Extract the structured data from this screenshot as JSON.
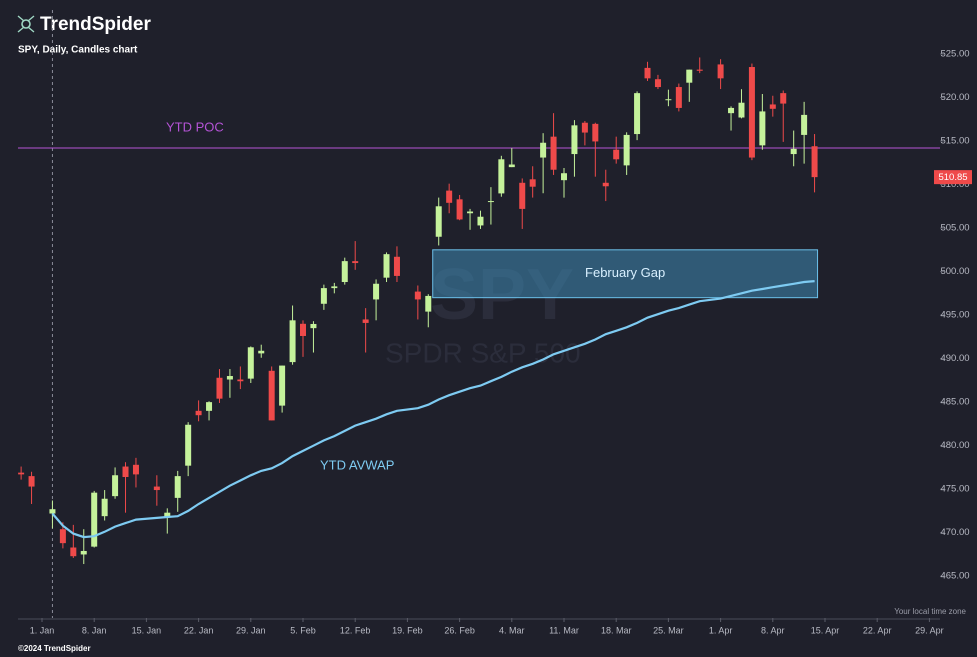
{
  "brand": "TrendSpider",
  "copyright": "©2024 TrendSpider",
  "timezone_note": "Your local time zone",
  "watermark": {
    "symbol": "SPY",
    "name": "SPDR S&P 500"
  },
  "chart_data": {
    "type": "candlestick",
    "title": "SPY, Daily, Candles chart",
    "up_color": "#c5f29b",
    "down_color": "#ef4a4a",
    "x": [
      "2023-12-28",
      "2023-12-29",
      "2024-01-02",
      "2024-01-03",
      "2024-01-04",
      "2024-01-05",
      "2024-01-08",
      "2024-01-09",
      "2024-01-10",
      "2024-01-11",
      "2024-01-12",
      "2024-01-16",
      "2024-01-17",
      "2024-01-18",
      "2024-01-19",
      "2024-01-22",
      "2024-01-23",
      "2024-01-24",
      "2024-01-25",
      "2024-01-26",
      "2024-01-29",
      "2024-01-30",
      "2024-01-31",
      "2024-02-01",
      "2024-02-02",
      "2024-02-05",
      "2024-02-06",
      "2024-02-07",
      "2024-02-08",
      "2024-02-09",
      "2024-02-12",
      "2024-02-13",
      "2024-02-14",
      "2024-02-15",
      "2024-02-16",
      "2024-02-20",
      "2024-02-21",
      "2024-02-22",
      "2024-02-23",
      "2024-02-26",
      "2024-02-27",
      "2024-02-28",
      "2024-02-29",
      "2024-03-01",
      "2024-03-04",
      "2024-03-05",
      "2024-03-06",
      "2024-03-07",
      "2024-03-08",
      "2024-03-11",
      "2024-03-12",
      "2024-03-13",
      "2024-03-14",
      "2024-03-15",
      "2024-03-18",
      "2024-03-19",
      "2024-03-20",
      "2024-03-21",
      "2024-03-22",
      "2024-03-25",
      "2024-03-26",
      "2024-03-27",
      "2024-03-28",
      "2024-04-01",
      "2024-04-02",
      "2024-04-03",
      "2024-04-04",
      "2024-04-05",
      "2024-04-08",
      "2024-04-09",
      "2024-04-10",
      "2024-04-11",
      "2024-04-12"
    ],
    "open": [
      476.9,
      476.5,
      472.2,
      470.4,
      468.3,
      467.5,
      468.4,
      471.9,
      474.2,
      477.6,
      477.8,
      475.3,
      471.8,
      474.0,
      477.7,
      484.0,
      484.0,
      487.8,
      487.6,
      487.6,
      487.7,
      490.6,
      488.6,
      484.6,
      489.6,
      494.0,
      493.5,
      496.3,
      498.1,
      498.8,
      501.2,
      494.5,
      496.8,
      499.3,
      501.7,
      497.7,
      495.4,
      504.0,
      509.3,
      508.3,
      506.7,
      505.3,
      508.1,
      508.98,
      512.0,
      510.2,
      510.6,
      513.1,
      515.5,
      510.5,
      513.5,
      517.1,
      516.97,
      510.2,
      514.0,
      512.2,
      515.8,
      523.4,
      522.1,
      519.8,
      521.2,
      521.7,
      523.2,
      523.8,
      518.2,
      517.7,
      523.5,
      514.5,
      519.2,
      520.5,
      513.5,
      515.7,
      514.4
    ],
    "high": [
      477.6,
      477.0,
      473.7,
      471.2,
      470.9,
      470.4,
      474.8,
      474.9,
      477.5,
      478.1,
      478.6,
      476.6,
      472.8,
      477.1,
      482.7,
      485.2,
      485.1,
      488.8,
      488.8,
      489.1,
      491.4,
      491.6,
      489.1,
      489.2,
      496.1,
      494.4,
      494.3,
      498.5,
      498.7,
      501.6,
      503.5,
      495.8,
      499.1,
      502.2,
      502.9,
      498.4,
      497.4,
      508.5,
      510.1,
      508.8,
      507.2,
      507.0,
      509.7,
      513.3,
      514.2,
      510.7,
      512.1,
      515.9,
      518.2,
      511.9,
      517.4,
      517.3,
      517.1,
      511.7,
      515.5,
      516.0,
      520.7,
      524.1,
      522.6,
      520.9,
      521.6,
      523.2,
      524.6,
      524.4,
      518.98,
      520.95,
      523.9,
      520.4,
      520.2,
      520.8,
      516.2,
      519.5,
      515.8
    ],
    "low": [
      476.1,
      473.3,
      470.5,
      468.2,
      467.1,
      466.4,
      468.3,
      471.4,
      473.9,
      472.3,
      475.2,
      473.1,
      469.9,
      472.4,
      476.5,
      482.8,
      482.9,
      484.9,
      485.5,
      486.5,
      487.2,
      490.1,
      482.9,
      483.8,
      489.3,
      490.2,
      490.7,
      495.6,
      497.5,
      498.5,
      500.2,
      490.7,
      494.4,
      498.8,
      498.8,
      494.5,
      493.6,
      503.0,
      506.7,
      505.9,
      504.8,
      504.9,
      505.4,
      508.6,
      512.0,
      504.9,
      508.5,
      509.0,
      511.1,
      508.5,
      510.9,
      514.5,
      510.9,
      508.1,
      512.4,
      511.1,
      515.1,
      521.9,
      520.97,
      519.0,
      518.4,
      519.5,
      522.8,
      520.97,
      516.2,
      517.6,
      512.8,
      514.0,
      517.8,
      514.9,
      512.1,
      512.4,
      509.1
    ],
    "close": [
      476.7,
      475.3,
      472.7,
      468.8,
      467.3,
      467.9,
      474.6,
      473.9,
      476.6,
      476.4,
      476.7,
      474.9,
      472.3,
      476.5,
      482.4,
      483.5,
      485.0,
      485.4,
      488.0,
      487.4,
      491.3,
      490.9,
      482.9,
      489.2,
      494.4,
      492.6,
      493.98,
      498.1,
      498.3,
      501.2,
      500.98,
      494.1,
      498.6,
      502.0,
      499.5,
      496.8,
      497.2,
      507.5,
      507.9,
      505.99,
      506.9,
      506.3,
      508.1,
      512.9,
      512.3,
      507.2,
      509.75,
      514.8,
      511.7,
      511.3,
      516.8,
      515.97,
      514.95,
      509.8,
      512.9,
      515.7,
      520.5,
      522.2,
      521.2,
      519.8,
      518.8,
      523.2,
      523.07,
      522.2,
      518.8,
      519.4,
      513.1,
      518.4,
      518.7,
      519.3,
      514.1,
      518.0,
      510.85
    ],
    "series": [
      {
        "name": "YTD AVWAP",
        "color": "#7ecbf2",
        "values": [
          null,
          null,
          472.2,
          470.8,
          469.9,
          469.5,
          469.6,
          470.1,
          470.7,
          471.1,
          471.5,
          471.7,
          471.8,
          471.9,
          472.5,
          473.3,
          474.0,
          474.7,
          475.4,
          476.0,
          476.6,
          477.1,
          477.4,
          478.0,
          478.8,
          479.4,
          480.0,
          480.6,
          481.1,
          481.7,
          482.3,
          482.7,
          483.1,
          483.6,
          484.0,
          484.3,
          484.7,
          485.3,
          485.8,
          486.2,
          486.6,
          486.9,
          487.4,
          487.9,
          488.5,
          489.0,
          489.4,
          489.9,
          490.5,
          490.9,
          491.3,
          491.7,
          492.2,
          492.8,
          493.2,
          493.6,
          494.1,
          494.7,
          495.1,
          495.5,
          495.8,
          496.2,
          496.6,
          496.9,
          497.2,
          497.5,
          497.8,
          498.0,
          498.2,
          498.4,
          498.6,
          498.8,
          498.9
        ]
      }
    ],
    "levels": [
      {
        "label": "YTD POC",
        "value": 514.2,
        "color": "#b453d6"
      }
    ],
    "zones": [
      {
        "label": "February Gap",
        "from": "2024-02-22",
        "to": "2024-04-12",
        "low": 497.0,
        "high": 502.5,
        "color": "#3e8bb5"
      }
    ],
    "ylim": [
      460.2,
      531.2
    ],
    "yticks": [
      {
        "value": 465,
        "label": "465.00"
      },
      {
        "value": 470,
        "label": "470.00"
      },
      {
        "value": 475,
        "label": "475.00"
      },
      {
        "value": 480,
        "label": "480.00"
      },
      {
        "value": 485,
        "label": "485.00"
      },
      {
        "value": 490,
        "label": "490.00"
      },
      {
        "value": 495,
        "label": "495.00"
      },
      {
        "value": 500,
        "label": "500.00"
      },
      {
        "value": 505,
        "label": "505.00"
      },
      {
        "value": 510,
        "label": "510.00"
      },
      {
        "value": 515,
        "label": "515.00"
      },
      {
        "value": 520,
        "label": "520.00"
      },
      {
        "value": 525,
        "label": "525.00"
      }
    ],
    "xticks": [
      {
        "value": "2024-01-01",
        "label": "1. Jan"
      },
      {
        "value": "2024-01-08",
        "label": "8. Jan"
      },
      {
        "value": "2024-01-15",
        "label": "15. Jan"
      },
      {
        "value": "2024-01-22",
        "label": "22. Jan"
      },
      {
        "value": "2024-01-29",
        "label": "29. Jan"
      },
      {
        "value": "2024-02-05",
        "label": "5. Feb"
      },
      {
        "value": "2024-02-12",
        "label": "12. Feb"
      },
      {
        "value": "2024-02-19",
        "label": "19. Feb"
      },
      {
        "value": "2024-02-26",
        "label": "26. Feb"
      },
      {
        "value": "2024-03-04",
        "label": "4. Mar"
      },
      {
        "value": "2024-03-11",
        "label": "11. Mar"
      },
      {
        "value": "2024-03-18",
        "label": "18. Mar"
      },
      {
        "value": "2024-03-25",
        "label": "25. Mar"
      },
      {
        "value": "2024-04-01",
        "label": "1. Apr"
      },
      {
        "value": "2024-04-08",
        "label": "8. Apr"
      },
      {
        "value": "2024-04-15",
        "label": "15. Apr"
      },
      {
        "value": "2024-04-22",
        "label": "22. Apr"
      },
      {
        "value": "2024-04-29",
        "label": "29. Apr"
      }
    ],
    "grid": false
  }
}
